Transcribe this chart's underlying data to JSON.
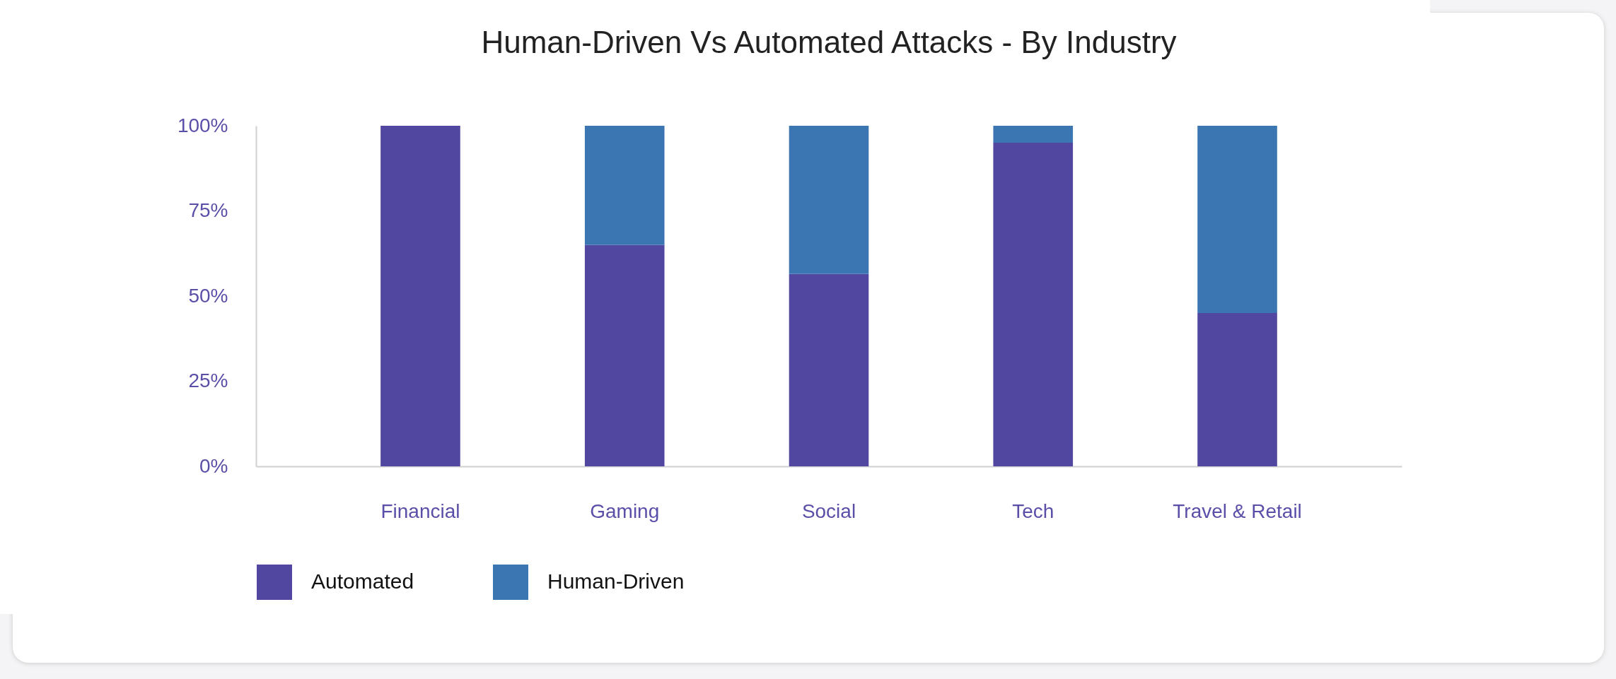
{
  "chart_data": {
    "type": "bar",
    "title": "Human-Driven Vs Automated Attacks - By Industry",
    "categories": [
      "Financial",
      "Gaming",
      "Social",
      "Tech",
      "Travel & Retail"
    ],
    "stacked": true,
    "series": [
      {
        "name": "Automated",
        "color": "#5247a0",
        "values": [
          100,
          65,
          56.5,
          95,
          45
        ]
      },
      {
        "name": "Human-Driven",
        "color": "#3b76b3",
        "values": [
          0,
          35,
          43.5,
          5,
          55
        ]
      }
    ],
    "ylim": [
      0,
      100
    ],
    "yticks": [
      {
        "value": 0,
        "label": "0%"
      },
      {
        "value": 25,
        "label": "25%"
      },
      {
        "value": 50,
        "label": "50%"
      },
      {
        "value": 75,
        "label": "75%"
      },
      {
        "value": 100,
        "label": "100%"
      }
    ],
    "grid": false,
    "legend": "bottom"
  }
}
